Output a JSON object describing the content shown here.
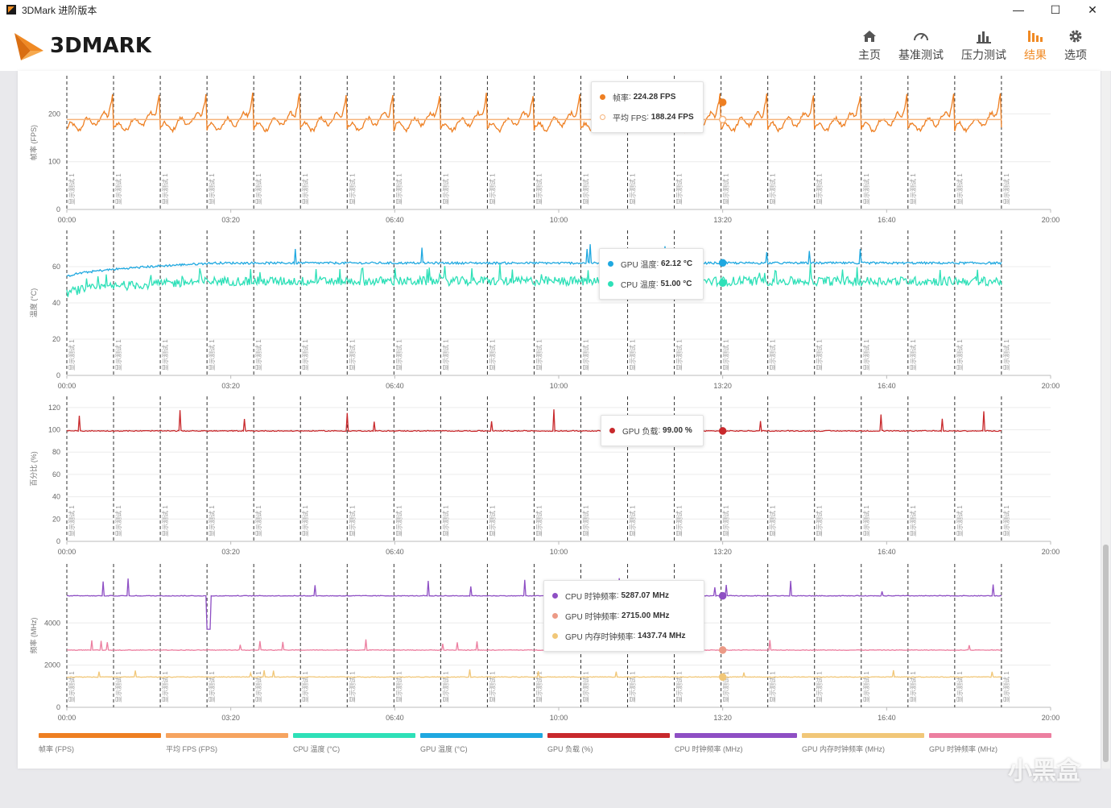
{
  "window": {
    "title": "3DMark 进阶版本",
    "minimize": "—",
    "maximize": "☐",
    "close": "✕"
  },
  "logo": {
    "text": "3DMARK"
  },
  "nav": {
    "items": [
      {
        "label": "主页",
        "icon": "home-icon"
      },
      {
        "label": "基准测试",
        "icon": "gauge-icon"
      },
      {
        "label": "压力测试",
        "icon": "bar-chart-icon"
      },
      {
        "label": "结果",
        "icon": "results-icon",
        "active": true
      },
      {
        "label": "选项",
        "icon": "gear-icon"
      }
    ],
    "accent_color": "#f08a24"
  },
  "chart_data": [
    {
      "type": "line",
      "ylabel": "帧率 (FPS)",
      "yticks": [
        0,
        100,
        200
      ],
      "ylim": [
        0,
        280
      ],
      "xticks": [
        "00:00",
        "03:20",
        "06:40",
        "10:00",
        "13:20",
        "16:40",
        "20:00"
      ],
      "xlim_seconds": [
        0,
        1200
      ],
      "loop_marker_label": "显示测试 1",
      "loop_markers_seconds": [
        0,
        57,
        114,
        171,
        228,
        285,
        342,
        399,
        456,
        513,
        570,
        627,
        684,
        741,
        798,
        855,
        912,
        969,
        1026,
        1083,
        1140
      ],
      "series": [
        {
          "name": "帧率 (FPS)",
          "color": "#ee7f22",
          "pattern": "sawtooth-per-loop",
          "min": 160,
          "max": 262
        },
        {
          "name": "平均 FPS (FPS)",
          "color": "#f6b37a",
          "constant": 188.24
        }
      ],
      "tooltip": {
        "time": "13:20",
        "rows": [
          {
            "label": "帧率",
            "value": "224.28 FPS",
            "color": "#ee7f22",
            "hollow": false
          },
          {
            "label": "平均 FPS",
            "value": "188.24 FPS",
            "color": "#f6b37a",
            "hollow": true
          }
        ]
      }
    },
    {
      "type": "line",
      "ylabel": "温度 (°C)",
      "yticks": [
        0,
        20,
        40,
        60
      ],
      "ylim": [
        0,
        80
      ],
      "xticks": [
        "00:00",
        "03:20",
        "06:40",
        "10:00",
        "13:20",
        "16:40",
        "20:00"
      ],
      "series": [
        {
          "name": "GPU 温度 (°C)",
          "color": "#1fa8e0",
          "start": 54,
          "plateau": 62
        },
        {
          "name": "CPU 温度 (°C)",
          "color": "#2ee0b8",
          "start": 45,
          "plateau": 52
        }
      ],
      "tooltip": {
        "time": "13:20",
        "rows": [
          {
            "label": "GPU 温度",
            "value": "62.12 °C",
            "color": "#1fa8e0",
            "hollow": false
          },
          {
            "label": "CPU 温度",
            "value": "51.00 °C",
            "color": "#2ee0b8",
            "hollow": false
          }
        ]
      }
    },
    {
      "type": "line",
      "ylabel": "百分比 (%)",
      "yticks": [
        0,
        20,
        40,
        60,
        80,
        100,
        120
      ],
      "ylim": [
        0,
        130
      ],
      "xticks": [
        "00:00",
        "03:20",
        "06:40",
        "10:00",
        "13:20",
        "16:40",
        "20:00"
      ],
      "series": [
        {
          "name": "GPU 负载 (%)",
          "color": "#c8292c",
          "baseline": 99
        }
      ],
      "tooltip": {
        "time": "13:20",
        "rows": [
          {
            "label": "GPU 负载",
            "value": "99.00 %",
            "color": "#c8292c",
            "hollow": false
          }
        ]
      }
    },
    {
      "type": "line",
      "ylabel": "频率 (MHz)",
      "yticks": [
        0,
        2000,
        4000
      ],
      "ylim": [
        0,
        6800
      ],
      "xticks": [
        "00:00",
        "03:20",
        "06:40",
        "10:00",
        "13:20",
        "16:40",
        "20:00"
      ],
      "series": [
        {
          "name": "CPU 时钟频率 (MHz)",
          "color": "#8e4fc4",
          "baseline": 5287.07
        },
        {
          "name": "GPU 时钟频率 (MHz)",
          "color": "#ec7fa0",
          "baseline": 2715.0
        },
        {
          "name": "GPU 内存时钟频率 (MHz)",
          "color": "#f1c778",
          "baseline": 1437.74
        }
      ],
      "tooltip": {
        "time": "13:20",
        "rows": [
          {
            "label": "CPU 时钟频率",
            "value": "5287.07 MHz",
            "color": "#8e4fc4",
            "hollow": false
          },
          {
            "label": "GPU 时钟频率",
            "value": "2715.00 MHz",
            "color": "#ec9a86",
            "hollow": false
          },
          {
            "label": "GPU 内存时钟频率",
            "value": "1437.74 MHz",
            "color": "#f1c778",
            "hollow": false
          }
        ]
      }
    }
  ],
  "legend": [
    {
      "label": "帧率 (FPS)",
      "color": "#ee7f22"
    },
    {
      "label": "平均 FPS (FPS)",
      "color": "#f6a460"
    },
    {
      "label": "CPU 温度 (°C)",
      "color": "#2ee0b8"
    },
    {
      "label": "GPU 温度 (°C)",
      "color": "#1fa8e0"
    },
    {
      "label": "GPU 负载 (%)",
      "color": "#c8292c"
    },
    {
      "label": "CPU 时钟频率 (MHz)",
      "color": "#8e4fc4"
    },
    {
      "label": "GPU 内存时钟频率 (MHz)",
      "color": "#f1c778"
    },
    {
      "label": "GPU 时钟频率 (MHz)",
      "color": "#ec7fa0"
    }
  ],
  "watermark": "小黑盒"
}
